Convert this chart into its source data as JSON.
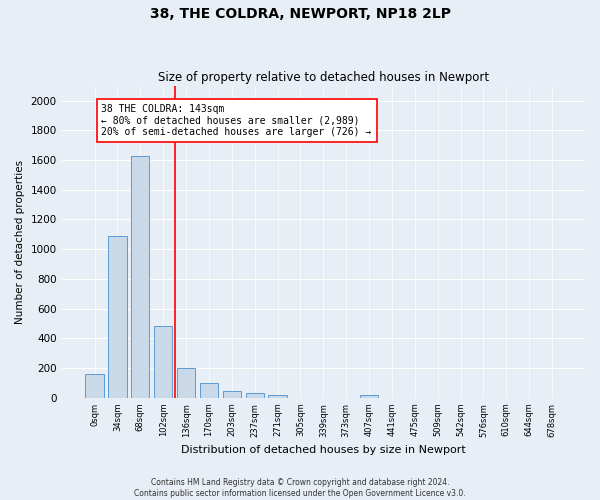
{
  "title": "38, THE COLDRA, NEWPORT, NP18 2LP",
  "subtitle": "Size of property relative to detached houses in Newport",
  "xlabel": "Distribution of detached houses by size in Newport",
  "ylabel": "Number of detached properties",
  "bar_color": "#c9d9e8",
  "bar_edge_color": "#5b9bd5",
  "vline_color": "red",
  "annotation_title": "38 THE COLDRA: 143sqm",
  "annotation_line1": "← 80% of detached houses are smaller (2,989)",
  "annotation_line2": "20% of semi-detached houses are larger (726) →",
  "categories": [
    "0sqm",
    "34sqm",
    "68sqm",
    "102sqm",
    "136sqm",
    "170sqm",
    "203sqm",
    "237sqm",
    "271sqm",
    "305sqm",
    "339sqm",
    "373sqm",
    "407sqm",
    "441sqm",
    "475sqm",
    "509sqm",
    "542sqm",
    "576sqm",
    "610sqm",
    "644sqm",
    "678sqm"
  ],
  "values": [
    160,
    1090,
    1625,
    480,
    200,
    100,
    45,
    30,
    20,
    0,
    0,
    0,
    20,
    0,
    0,
    0,
    0,
    0,
    0,
    0,
    0
  ],
  "ylim": [
    0,
    2100
  ],
  "yticks": [
    0,
    200,
    400,
    600,
    800,
    1000,
    1200,
    1400,
    1600,
    1800,
    2000
  ],
  "footer_line1": "Contains HM Land Registry data © Crown copyright and database right 2024.",
  "footer_line2": "Contains public sector information licensed under the Open Government Licence v3.0.",
  "background_color": "#e8eef5",
  "plot_background": "#e8eef5",
  "title_fontsize": 10,
  "subtitle_fontsize": 8.5,
  "vline_bar_index": 4
}
